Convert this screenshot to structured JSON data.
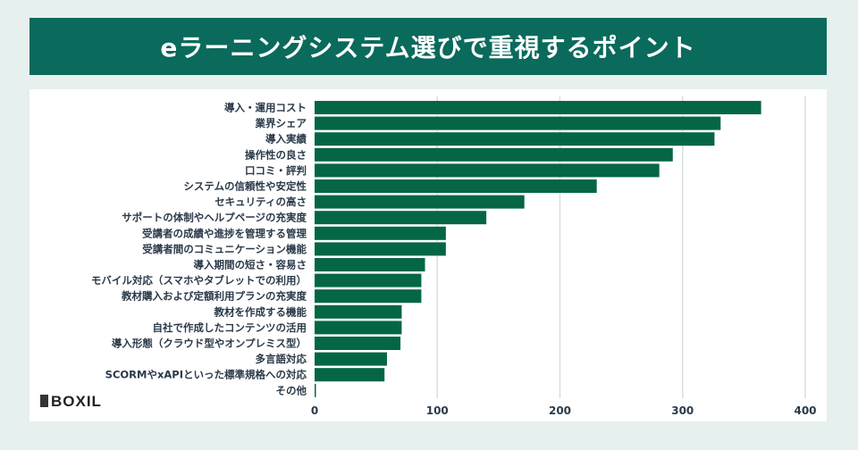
{
  "chart_data": {
    "type": "bar",
    "orientation": "horizontal",
    "title": "eラーニングシステム選びで重視するポイント",
    "categories": [
      "導入・運用コスト",
      "業界シェア",
      "導入実績",
      "操作性の良さ",
      "口コミ・評判",
      "システムの信頼性や安定性",
      "セキュリティの高さ",
      "サポートの体制やヘルプページの充実度",
      "受講者の成績や進捗を管理する管理",
      "受講者間のコミュニケーション機能",
      "導入期間の短さ・容易さ",
      "モバイル対応（スマホやタブレットでの利用）",
      "教材購入および定額利用プランの充実度",
      "教材を作成する機能",
      "自社で作成したコンテンツの活用",
      "導入形態（クラウド型やオンプレミス型）",
      "多言語対応",
      "SCORMやxAPIといった標準規格への対応",
      "その他"
    ],
    "values": [
      364,
      331,
      326,
      292,
      281,
      230,
      171,
      140,
      107,
      107,
      90,
      87,
      87,
      71,
      71,
      70,
      59,
      57,
      1
    ],
    "xlim": [
      0,
      400
    ],
    "xticks": [
      "0",
      "100",
      "200",
      "300",
      "400"
    ],
    "grid": true,
    "bar_color": "#046645",
    "grid_color": "#d9dde0"
  },
  "brand": {
    "logo_text": "BOXIL"
  }
}
